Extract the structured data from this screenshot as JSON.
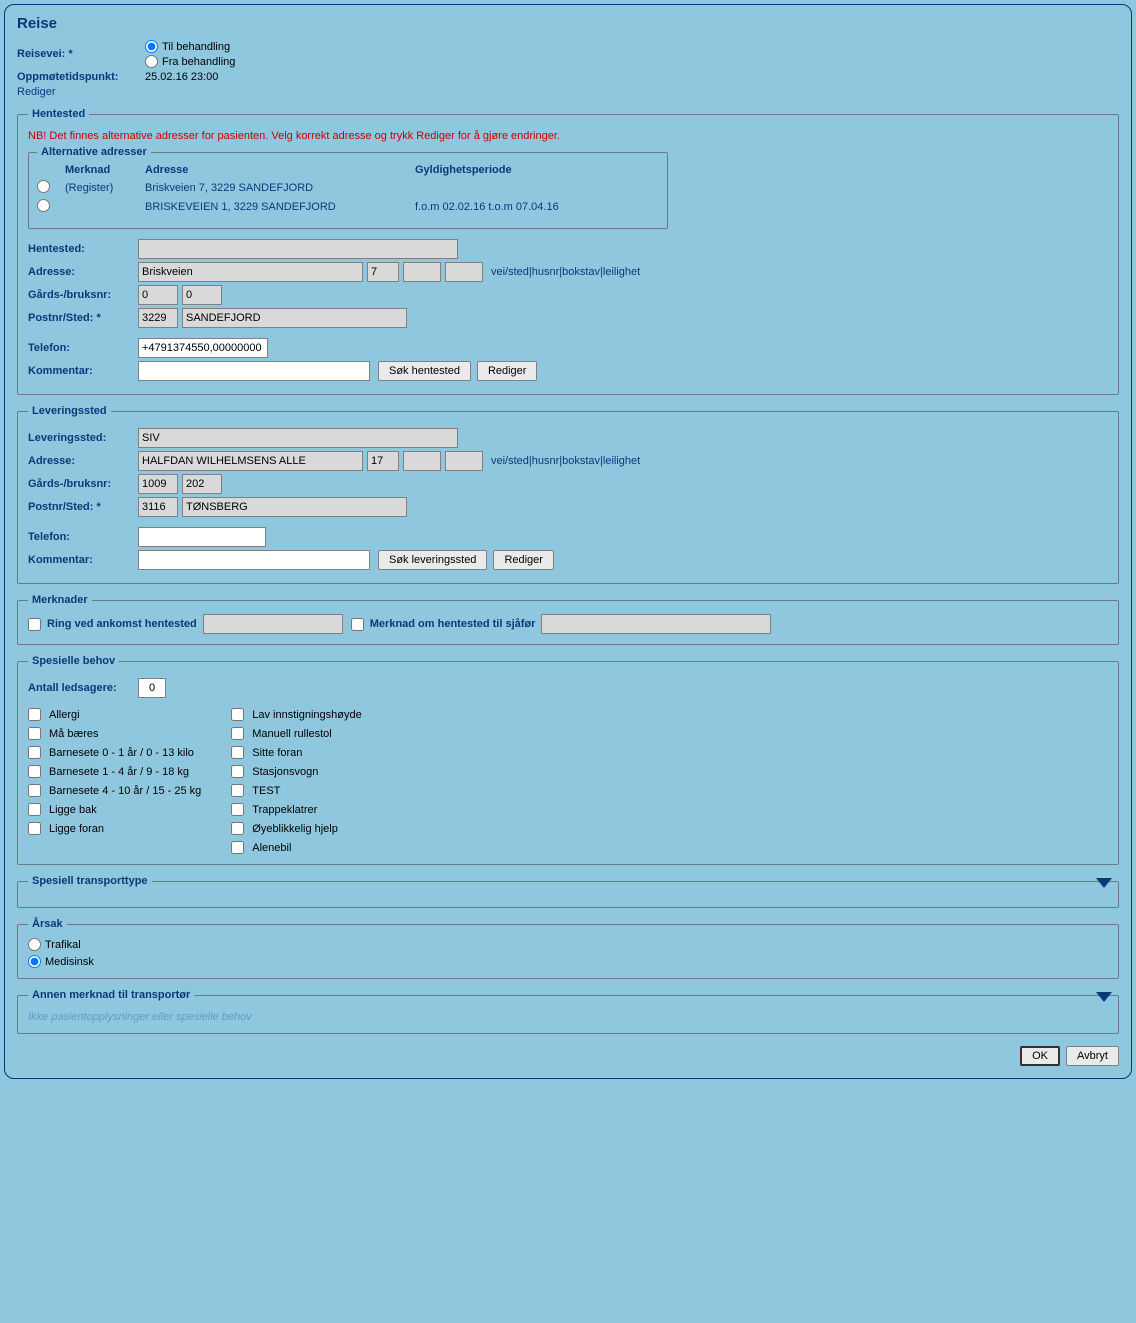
{
  "title": "Reise",
  "reisevei": {
    "label": "Reisevei: *",
    "options": {
      "til": "Til behandling",
      "fra": "Fra behandling"
    },
    "selected": "til"
  },
  "oppmote": {
    "label": "Oppmøtetidspunkt:",
    "value": "25.02.16 23:00"
  },
  "redigerLink": "Rediger",
  "hentested": {
    "legend": "Hentested",
    "warning": "NB! Det finnes alternative adresser for pasienten. Velg korrekt adresse og trykk Rediger for å gjøre endringer.",
    "altLegend": "Alternative adresser",
    "altHeaders": {
      "merknad": "Merknad",
      "adresse": "Adresse",
      "periode": "Gyldighetsperiode"
    },
    "altRows": [
      {
        "merknad": "(Register)",
        "adresse": "Briskveien 7, 3229 SANDEFJORD",
        "periode": ""
      },
      {
        "merknad": "",
        "adresse": "BRISKEVEIEN 1, 3229 SANDEFJORD",
        "periode": "f.o.m 02.02.16  t.o.m 07.04.16"
      }
    ],
    "fields": {
      "hentestedLabel": "Hentested:",
      "hentestedValue": "",
      "adresseLabel": "Adresse:",
      "adresseStreet": "Briskveien",
      "adresseNr": "7",
      "adresseBokstav": "",
      "adresseLeil": "",
      "adresseHint": "vei/sted|husnr|bokstav|leilighet",
      "gardsLabel": "Gårds-/bruksnr:",
      "gards1": "0",
      "gards2": "0",
      "postLabel": "Postnr/Sted: *",
      "postnr": "3229",
      "poststed": "SANDEFJORD",
      "telefonLabel": "Telefon:",
      "telefon": "+4791374550,00000000",
      "kommentarLabel": "Kommentar:",
      "kommentar": "",
      "sokBtn": "Søk hentested",
      "redigerBtn": "Rediger"
    }
  },
  "leveringssted": {
    "legend": "Leveringssted",
    "fields": {
      "leveringsstedLabel": "Leveringssted:",
      "leveringsstedValue": "SIV",
      "adresseLabel": "Adresse:",
      "adresseStreet": "HALFDAN WILHELMSENS ALLE",
      "adresseNr": "17",
      "adresseBokstav": "",
      "adresseLeil": "",
      "adresseHint": "vei/sted|husnr|bokstav|leilighet",
      "gardsLabel": "Gårds-/bruksnr:",
      "gards1": "1009",
      "gards2": "202",
      "postLabel": "Postnr/Sted: *",
      "postnr": "3116",
      "poststed": "TØNSBERG",
      "telefonLabel": "Telefon:",
      "telefon": "",
      "kommentarLabel": "Kommentar:",
      "kommentar": "",
      "sokBtn": "Søk leveringssted",
      "redigerBtn": "Rediger"
    }
  },
  "merknader": {
    "legend": "Merknader",
    "ringLabel": "Ring ved ankomst hentested",
    "ringValue": "",
    "sjoforLabel": "Merknad om hentested til sjåfør",
    "sjoforValue": ""
  },
  "behov": {
    "legend": "Spesielle behov",
    "ledsagereLabel": "Antall ledsagere:",
    "ledsagereValue": "0",
    "col1": [
      "Allergi",
      "Må bæres",
      "Barnesete 0 - 1 år / 0 - 13 kilo",
      "Barnesete 1 - 4 år / 9 - 18 kg",
      "Barnesete 4 - 10 år / 15 - 25 kg",
      "Ligge bak",
      "Ligge foran"
    ],
    "col2": [
      "Lav innstigningshøyde",
      "Manuell rullestol",
      "Sitte foran",
      "Stasjonsvogn",
      "TEST",
      "Trappeklatrer",
      "Øyeblikkelig hjelp",
      "Alenebil"
    ]
  },
  "transporttype": {
    "legend": "Spesiell transporttype"
  },
  "arsak": {
    "legend": "Årsak",
    "options": {
      "trafikal": "Trafikal",
      "medisinsk": "Medisinsk"
    },
    "selected": "medisinsk"
  },
  "annen": {
    "legend": "Annen merknad til transportør",
    "hint": "Ikke pasientopplysninger eller spesielle behov"
  },
  "footer": {
    "ok": "OK",
    "avbryt": "Avbryt"
  }
}
